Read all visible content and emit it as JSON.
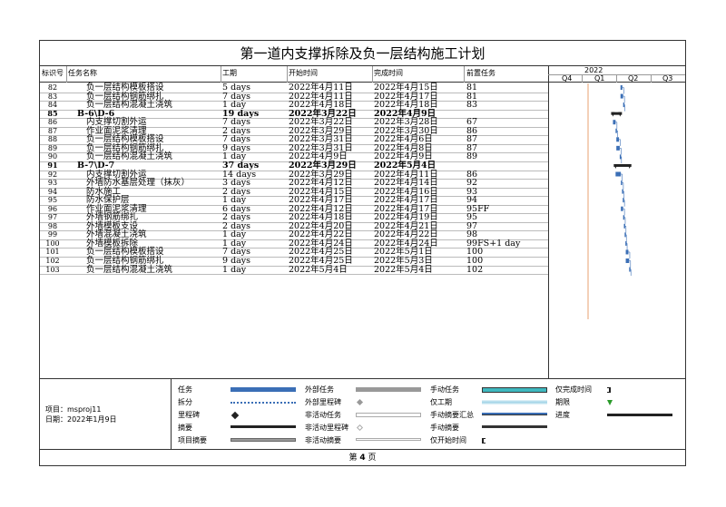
{
  "title": "第一道内支撑拆除及负一层结构施工计划",
  "headers": {
    "id": "标识号",
    "name": "任务名称",
    "duration": "工期",
    "start": "开始时间",
    "finish": "完成时间",
    "predecessors": "前置任务",
    "year": "2022",
    "quarters": [
      "Q4",
      "Q1",
      "Q2",
      "Q3"
    ]
  },
  "tasks": [
    {
      "id": "82",
      "name": "负一层结构模板搭设",
      "duration": "5 days",
      "start": "2022年4月11日",
      "finish": "2022年4月15日",
      "pred": "81",
      "summary": false,
      "indent": 2
    },
    {
      "id": "83",
      "name": "负一层结构钢筋绑扎",
      "duration": "7 days",
      "start": "2022年4月11日",
      "finish": "2022年4月17日",
      "pred": "81",
      "summary": false,
      "indent": 2
    },
    {
      "id": "84",
      "name": "负一层结构混凝土浇筑",
      "duration": "1 day",
      "start": "2022年4月18日",
      "finish": "2022年4月18日",
      "pred": "83",
      "summary": false,
      "indent": 2
    },
    {
      "id": "85",
      "name": "B-6\\D-6",
      "duration": "19 days",
      "start": "2022年3月22日",
      "finish": "2022年4月9日",
      "pred": "",
      "summary": true,
      "indent": 1
    },
    {
      "id": "86",
      "name": "内支撑切割外运",
      "duration": "7 days",
      "start": "2022年3月22日",
      "finish": "2022年3月28日",
      "pred": "67",
      "summary": false,
      "indent": 2
    },
    {
      "id": "87",
      "name": "作业面泥浆清理",
      "duration": "2 days",
      "start": "2022年3月29日",
      "finish": "2022年3月30日",
      "pred": "86",
      "summary": false,
      "indent": 2
    },
    {
      "id": "88",
      "name": "负一层结构模板搭设",
      "duration": "7 days",
      "start": "2022年3月31日",
      "finish": "2022年4月6日",
      "pred": "87",
      "summary": false,
      "indent": 2
    },
    {
      "id": "89",
      "name": "负一层结构钢筋绑扎",
      "duration": "9 days",
      "start": "2022年3月31日",
      "finish": "2022年4月8日",
      "pred": "87",
      "summary": false,
      "indent": 2
    },
    {
      "id": "90",
      "name": "负一层结构混凝土浇筑",
      "duration": "1 day",
      "start": "2022年4月9日",
      "finish": "2022年4月9日",
      "pred": "89",
      "summary": false,
      "indent": 2
    },
    {
      "id": "91",
      "name": "B-7\\D-7",
      "duration": "37 days",
      "start": "2022年3月29日",
      "finish": "2022年5月4日",
      "pred": "",
      "summary": true,
      "indent": 1
    },
    {
      "id": "92",
      "name": "内支撑切割外运",
      "duration": "14 days",
      "start": "2022年3月29日",
      "finish": "2022年4月11日",
      "pred": "86",
      "summary": false,
      "indent": 2
    },
    {
      "id": "93",
      "name": "外墙防水基层处理（抹灰）",
      "duration": "3 days",
      "start": "2022年4月12日",
      "finish": "2022年4月14日",
      "pred": "92",
      "summary": false,
      "indent": 2
    },
    {
      "id": "94",
      "name": "防水施工",
      "duration": "2 days",
      "start": "2022年4月15日",
      "finish": "2022年4月16日",
      "pred": "93",
      "summary": false,
      "indent": 2
    },
    {
      "id": "95",
      "name": "防水保护层",
      "duration": "1 day",
      "start": "2022年4月17日",
      "finish": "2022年4月17日",
      "pred": "94",
      "summary": false,
      "indent": 2
    },
    {
      "id": "96",
      "name": "作业面泥浆清理",
      "duration": "6 days",
      "start": "2022年4月12日",
      "finish": "2022年4月17日",
      "pred": "95FF",
      "summary": false,
      "indent": 2
    },
    {
      "id": "97",
      "name": "外墙钢筋绑扎",
      "duration": "2 days",
      "start": "2022年4月18日",
      "finish": "2022年4月19日",
      "pred": "95",
      "summary": false,
      "indent": 2
    },
    {
      "id": "98",
      "name": "外墙模板支设",
      "duration": "2 days",
      "start": "2022年4月20日",
      "finish": "2022年4月21日",
      "pred": "97",
      "summary": false,
      "indent": 2
    },
    {
      "id": "99",
      "name": "外墙混凝土浇筑",
      "duration": "1 day",
      "start": "2022年4月22日",
      "finish": "2022年4月22日",
      "pred": "98",
      "summary": false,
      "indent": 2
    },
    {
      "id": "100",
      "name": "外墙模板拆除",
      "duration": "1 day",
      "start": "2022年4月24日",
      "finish": "2022年4月24日",
      "pred": "99FS+1 day",
      "summary": false,
      "indent": 2
    },
    {
      "id": "101",
      "name": "负一层结构模板搭设",
      "duration": "7 days",
      "start": "2022年4月25日",
      "finish": "2022年5月1日",
      "pred": "100",
      "summary": false,
      "indent": 2
    },
    {
      "id": "102",
      "name": "负一层结构钢筋绑扎",
      "duration": "9 days",
      "start": "2022年4月25日",
      "finish": "2022年5月3日",
      "pred": "100",
      "summary": false,
      "indent": 2
    },
    {
      "id": "103",
      "name": "负一层结构混凝土浇筑",
      "duration": "1 day",
      "start": "2022年5月4日",
      "finish": "2022年5月4日",
      "pred": "102",
      "summary": false,
      "indent": 2
    }
  ],
  "legend": {
    "project": "项目：msproj11",
    "date": "日期：2022年1月9日",
    "items": [
      {
        "label": "任务",
        "sym": "task"
      },
      {
        "label": "拆分",
        "sym": "split"
      },
      {
        "label": "里程碑",
        "sym": "milestone"
      },
      {
        "label": "摘要",
        "sym": "summary"
      },
      {
        "label": "项目摘要",
        "sym": "projsummary"
      },
      {
        "label": "外部任务",
        "sym": "exttask"
      },
      {
        "label": "外部里程碑",
        "sym": "extmilestone"
      },
      {
        "label": "非活动任务",
        "sym": "inactive"
      },
      {
        "label": "非活动里程碑",
        "sym": "inactivemilestone"
      },
      {
        "label": "非活动摘要",
        "sym": "inactivesummary"
      },
      {
        "label": "手动任务",
        "sym": "manual"
      },
      {
        "label": "仅工期",
        "sym": "duronly"
      },
      {
        "label": "手动摘要汇总",
        "sym": "manualrollup"
      },
      {
        "label": "手动摘要",
        "sym": "manualsummary"
      },
      {
        "label": "仅开始时间",
        "sym": "startonly"
      },
      {
        "label": "仅完成时间",
        "sym": "finishonly"
      },
      {
        "label": "期限",
        "sym": "deadline"
      },
      {
        "label": "进度",
        "sym": "progress"
      }
    ]
  },
  "footer": {
    "prefix": "第",
    "page": "4",
    "suffix": "页"
  },
  "colors": {
    "task": "#3b6fb6",
    "summary": "#222222",
    "today": "#e8a070"
  }
}
